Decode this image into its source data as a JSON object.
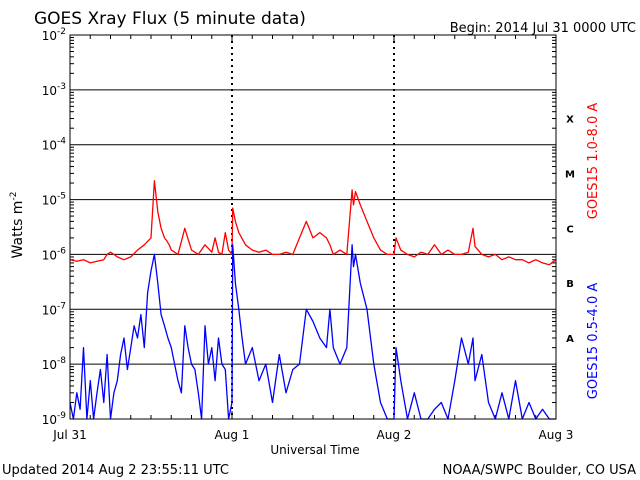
{
  "chart_data": {
    "type": "line",
    "title": "GOES Xray Flux (5 minute data)",
    "begin_label": "Begin:  2014 Jul 31 0000 UTC",
    "xlabel": "Universal Time",
    "ylabel": "Watts m",
    "ylabel_superscript": "-2",
    "y_scale": "log",
    "ylim": [
      1e-09,
      0.01
    ],
    "xlim": [
      0,
      72
    ],
    "x_unit": "hours since 2014 Jul 31 0000 UTC",
    "y_ticks": [
      {
        "value": 0.01,
        "base": "10",
        "exp": "-2"
      },
      {
        "value": 0.001,
        "base": "10",
        "exp": "-3"
      },
      {
        "value": 0.0001,
        "base": "10",
        "exp": "-4"
      },
      {
        "value": 1e-05,
        "base": "10",
        "exp": "-5"
      },
      {
        "value": 1e-06,
        "base": "10",
        "exp": "-6"
      },
      {
        "value": 1e-07,
        "base": "10",
        "exp": "-7"
      },
      {
        "value": 1e-08,
        "base": "10",
        "exp": "-8"
      },
      {
        "value": 1e-09,
        "base": "10",
        "exp": "-9"
      }
    ],
    "x_ticks": [
      {
        "value": 0,
        "label": "Jul 31"
      },
      {
        "value": 24,
        "label": "Aug 1"
      },
      {
        "value": 48,
        "label": "Aug 2"
      },
      {
        "value": 72,
        "label": "Aug 3"
      }
    ],
    "flare_classes": [
      {
        "label": "X",
        "value": 0.0003
      },
      {
        "label": "M",
        "value": 3e-05
      },
      {
        "label": "C",
        "value": 3e-06
      },
      {
        "label": "B",
        "value": 3e-07
      },
      {
        "label": "A",
        "value": 3e-08
      }
    ],
    "grid": true,
    "series": [
      {
        "name": "GOES15 1.0-8.0 A",
        "color": "#ff0000",
        "x": [
          0,
          1,
          2,
          3,
          4,
          5,
          5.5,
          6,
          6.5,
          7,
          8,
          9,
          10,
          11,
          12,
          12.5,
          13,
          13.5,
          14,
          14.3,
          14.7,
          15,
          15.5,
          16,
          17,
          18,
          18.5,
          19,
          20,
          21,
          21.5,
          22,
          22.5,
          23,
          23.5,
          24,
          24.1,
          24.5,
          25,
          26,
          27,
          28,
          29,
          30,
          31,
          32,
          33,
          34,
          35,
          36,
          37,
          38,
          38.5,
          39,
          40,
          41,
          41.8,
          42,
          42.3,
          43,
          44,
          45,
          46,
          47,
          48,
          48.3,
          49,
          50,
          51,
          52,
          53,
          54,
          55,
          56,
          57,
          58,
          59,
          59.7,
          60,
          61,
          62,
          63,
          64,
          65,
          66,
          67,
          68,
          69,
          70,
          71,
          72
        ],
        "y": [
          8e-07,
          7.5e-07,
          8e-07,
          7e-07,
          7.5e-07,
          8e-07,
          1e-06,
          1.1e-06,
          1e-06,
          9e-07,
          8e-07,
          9e-07,
          1.2e-06,
          1.5e-06,
          2e-06,
          2.2e-05,
          6e-06,
          3e-06,
          2e-06,
          1.8e-06,
          1.5e-06,
          1.2e-06,
          1.1e-06,
          1e-06,
          3e-06,
          1.2e-06,
          1.1e-06,
          1e-06,
          1.5e-06,
          1.1e-06,
          2e-06,
          1.1e-06,
          1e-06,
          2.5e-06,
          1.2e-06,
          1e-06,
          7e-06,
          4e-06,
          2.5e-06,
          1.5e-06,
          1.2e-06,
          1.1e-06,
          1.2e-06,
          1e-06,
          1e-06,
          1.1e-06,
          1e-06,
          2e-06,
          4e-06,
          2e-06,
          2.5e-06,
          2e-06,
          1.5e-06,
          1e-06,
          1.2e-06,
          1e-06,
          1.5e-05,
          8e-06,
          1.4e-05,
          8e-06,
          4e-06,
          2e-06,
          1.2e-06,
          1e-06,
          1e-06,
          2e-06,
          1.2e-06,
          1e-06,
          9e-07,
          1.1e-06,
          1e-06,
          1.5e-06,
          1e-06,
          1.2e-06,
          1e-06,
          1e-06,
          1.1e-06,
          3e-06,
          1.4e-06,
          1e-06,
          9e-07,
          1e-06,
          8e-07,
          9e-07,
          8e-07,
          8e-07,
          7e-07,
          8e-07,
          7e-07,
          6.5e-07,
          8e-07
        ]
      },
      {
        "name": "GOES15 0.5-4.0 A",
        "color": "#0000ff",
        "x": [
          0,
          0.5,
          1,
          1.5,
          2,
          2.5,
          3,
          3.5,
          4,
          4.5,
          5,
          5.5,
          6,
          6.5,
          7,
          7.5,
          8,
          8.5,
          9,
          9.5,
          10,
          10.5,
          11,
          11.5,
          12,
          12.5,
          13,
          13.5,
          14,
          14.5,
          15,
          15.5,
          16,
          16.5,
          17,
          17.5,
          18,
          18.5,
          19,
          19.5,
          20,
          20.5,
          21,
          21.5,
          22,
          22.5,
          23,
          23.5,
          24,
          24.1,
          24.5,
          25,
          25.5,
          26,
          27,
          28,
          29,
          30,
          31,
          32,
          33,
          34,
          35,
          36,
          37,
          38,
          38.5,
          39,
          40,
          41,
          41.8,
          42,
          42.3,
          43,
          44,
          45,
          46,
          47,
          48,
          48.3,
          49,
          50,
          51,
          52,
          53,
          54,
          55,
          56,
          57,
          58,
          59,
          59.7,
          60,
          61,
          62,
          63,
          64,
          65,
          66,
          67,
          68,
          69,
          70,
          71,
          72
        ],
        "y": [
          2e-09,
          1e-09,
          3e-09,
          1.5e-09,
          2e-08,
          1e-09,
          5e-09,
          1e-09,
          3e-09,
          8e-09,
          2e-09,
          1.5e-08,
          1e-09,
          3e-09,
          5e-09,
          1.5e-08,
          3e-08,
          8e-09,
          2e-08,
          5e-08,
          3e-08,
          8e-08,
          2e-08,
          2e-07,
          5e-07,
          1e-06,
          3e-07,
          8e-08,
          5e-08,
          3e-08,
          2e-08,
          1e-08,
          5e-09,
          3e-09,
          5e-08,
          2e-08,
          1e-08,
          8e-09,
          3e-09,
          1e-09,
          5e-08,
          1e-08,
          2e-08,
          5e-09,
          3e-08,
          1e-08,
          8e-09,
          1e-09,
          2e-09,
          1.5e-06,
          3e-07,
          1e-07,
          3e-08,
          1e-08,
          2e-08,
          5e-09,
          1e-08,
          2e-09,
          1.5e-08,
          3e-09,
          8e-09,
          1e-08,
          1e-07,
          6e-08,
          3e-08,
          2e-08,
          1e-07,
          2e-08,
          1e-08,
          2e-08,
          1.5e-06,
          6e-07,
          1e-06,
          3e-07,
          1e-07,
          1e-08,
          2e-09,
          1e-09,
          1e-09,
          2e-08,
          5e-09,
          1e-09,
          3e-09,
          1e-09,
          1e-09,
          1.5e-09,
          2e-09,
          1e-09,
          5e-09,
          3e-08,
          1e-08,
          3e-08,
          5e-09,
          1.5e-08,
          2e-09,
          1e-09,
          3e-09,
          1e-09,
          5e-09,
          1e-09,
          2e-09,
          1e-09,
          1.5e-09,
          1e-09,
          1e-09
        ]
      }
    ]
  },
  "footer": {
    "updated": "Updated 2014 Aug  2 23:55:11 UTC",
    "credit": "NOAA/SWPC Boulder, CO USA"
  }
}
